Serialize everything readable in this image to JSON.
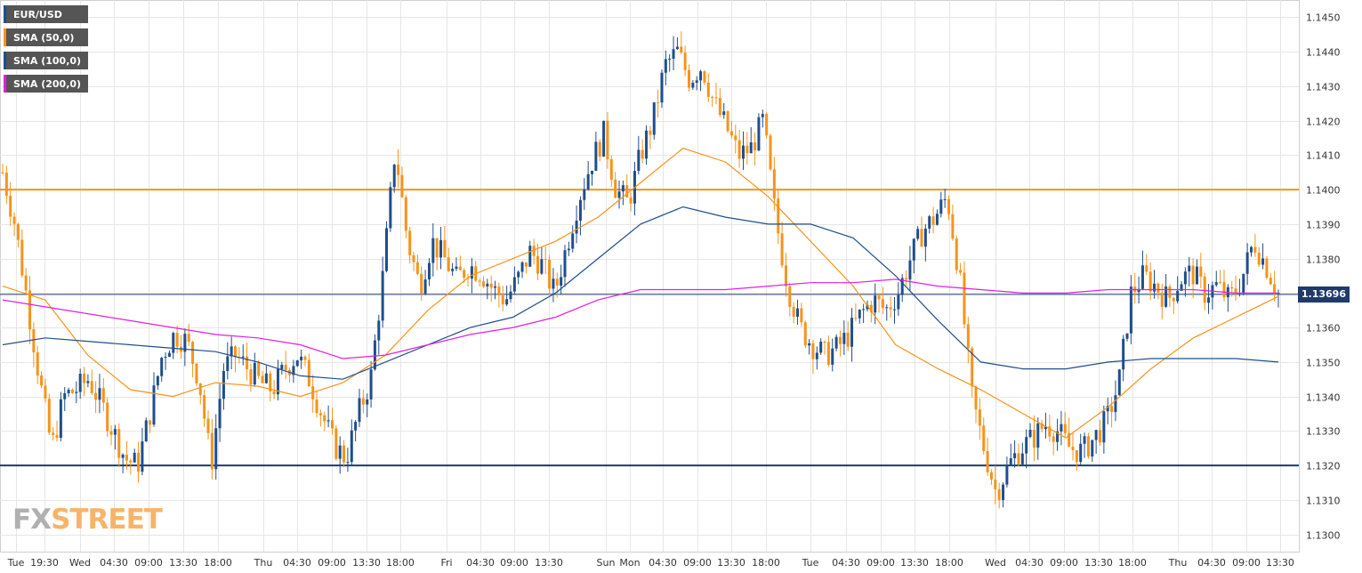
{
  "legend": [
    {
      "label": "EUR/USD",
      "color": "#1f4e8c"
    },
    {
      "label": "SMA (50,0)",
      "color": "#f7931a"
    },
    {
      "label": "SMA (100,0)",
      "color": "#1f4e8c"
    },
    {
      "label": "SMA (200,0)",
      "color": "#e020e0"
    }
  ],
  "current_price_label": "1.13696",
  "watermark": {
    "part1": "FX",
    "part2": "STREET"
  },
  "colors": {
    "up": "#1f4e8c",
    "down": "#f7931a",
    "sma50": "#f7931a",
    "sma100": "#1f4e8c",
    "sma200": "#e020e0",
    "resistance": "#f7931a",
    "support": "#1f3a6b",
    "price_line": "#1f3a6b",
    "grid": "#e6e6e6"
  },
  "chart_data": {
    "type": "candlestick",
    "symbol": "EUR/USD",
    "ylim": [
      1.1295,
      1.1455
    ],
    "y_ticks": [
      "1.1300",
      "1.1310",
      "1.1320",
      "1.1330",
      "1.1340",
      "1.1350",
      "1.1360",
      "1.1370",
      "1.1380",
      "1.1390",
      "1.1400",
      "1.1410",
      "1.1420",
      "1.1430",
      "1.1440",
      "1.1450"
    ],
    "x_ticks": [
      "Tue",
      "19:30",
      "Wed",
      "04:30",
      "09:00",
      "13:30",
      "18:00",
      "Thu",
      "04:30",
      "09:00",
      "13:30",
      "18:00",
      "Fri",
      "04:30",
      "09:00",
      "13:30",
      "Sun",
      "Mon",
      "04:30",
      "09:00",
      "13:30",
      "18:00",
      "Tue",
      "04:30",
      "09:00",
      "13:30",
      "18:00",
      "Wed",
      "04:30",
      "09:00",
      "13:30",
      "18:00",
      "Thu",
      "04:30",
      "09:00",
      "13:30"
    ],
    "horizontal_levels": {
      "resistance": 1.14,
      "support": 1.132,
      "last_price": 1.13696
    },
    "price_path": [
      1.1405,
      1.139,
      1.1368,
      1.1345,
      1.1325,
      1.134,
      1.1342,
      1.1345,
      1.1338,
      1.133,
      1.1322,
      1.132,
      1.1335,
      1.1352,
      1.1358,
      1.1356,
      1.1345,
      1.132,
      1.1348,
      1.1352,
      1.1348,
      1.1344,
      1.1342,
      1.1348,
      1.1352,
      1.1345,
      1.1335,
      1.1326,
      1.1322,
      1.1335,
      1.1345,
      1.1375,
      1.1412,
      1.1385,
      1.1372,
      1.1385,
      1.138,
      1.1374,
      1.1378,
      1.1376,
      1.1371,
      1.1368,
      1.1374,
      1.1382,
      1.1378,
      1.137,
      1.1384,
      1.1398,
      1.1408,
      1.1416,
      1.14,
      1.1396,
      1.141,
      1.142,
      1.1436,
      1.144,
      1.1432,
      1.1436,
      1.1425,
      1.1418,
      1.141,
      1.1412,
      1.142,
      1.1392,
      1.1372,
      1.136,
      1.1355,
      1.1352,
      1.1354,
      1.1358,
      1.1364,
      1.1368,
      1.1365,
      1.137,
      1.138,
      1.1388,
      1.1392,
      1.1398,
      1.1375,
      1.134,
      1.1325,
      1.1312,
      1.132,
      1.1325,
      1.1328,
      1.1332,
      1.133,
      1.1325,
      1.1324,
      1.1328,
      1.1333,
      1.1344,
      1.137,
      1.1375,
      1.1372,
      1.1368,
      1.1374,
      1.1376,
      1.137,
      1.1372,
      1.1368,
      1.1374,
      1.1385,
      1.1378,
      1.137
    ],
    "series": [
      {
        "name": "SMA (50,0)",
        "values": [
          1.1372,
          1.1368,
          1.1352,
          1.1342,
          1.134,
          1.1344,
          1.1343,
          1.134,
          1.1344,
          1.1352,
          1.1365,
          1.1375,
          1.138,
          1.1385,
          1.1392,
          1.1402,
          1.1412,
          1.1408,
          1.1398,
          1.1385,
          1.1372,
          1.1355,
          1.1348,
          1.1342,
          1.1335,
          1.1328,
          1.1337,
          1.1348,
          1.1357,
          1.1363,
          1.1369
        ]
      },
      {
        "name": "SMA (100,0)",
        "values": [
          1.1355,
          1.1357,
          1.1356,
          1.1355,
          1.1354,
          1.1353,
          1.135,
          1.1346,
          1.1345,
          1.135,
          1.1355,
          1.136,
          1.1363,
          1.137,
          1.138,
          1.139,
          1.1395,
          1.1392,
          1.139,
          1.139,
          1.1386,
          1.1375,
          1.1362,
          1.135,
          1.1348,
          1.1348,
          1.135,
          1.1351,
          1.1351,
          1.1351,
          1.135
        ]
      },
      {
        "name": "SMA (200,0)",
        "values": [
          1.1368,
          1.1366,
          1.1364,
          1.1362,
          1.136,
          1.1358,
          1.1357,
          1.1355,
          1.1351,
          1.1352,
          1.1355,
          1.1358,
          1.136,
          1.1363,
          1.1368,
          1.1371,
          1.1371,
          1.1371,
          1.1372,
          1.1373,
          1.1373,
          1.1374,
          1.1372,
          1.1371,
          1.137,
          1.137,
          1.1371,
          1.1371,
          1.1371,
          1.137,
          1.137
        ]
      }
    ]
  }
}
